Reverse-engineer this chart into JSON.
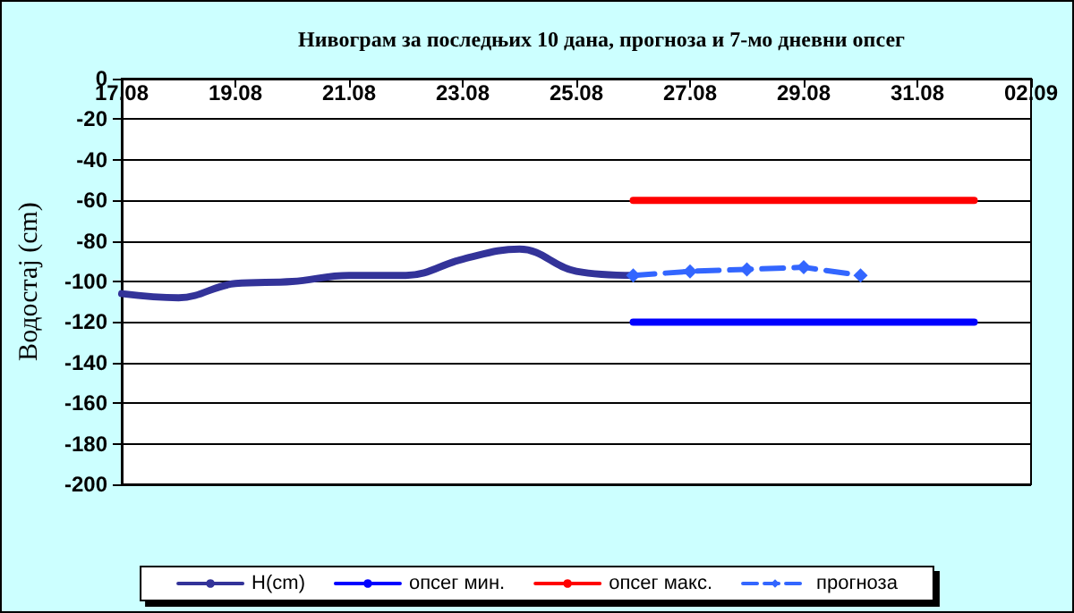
{
  "chart_data": {
    "type": "line",
    "title": "Нивограм за последњих 10 дана, прогноза и 7-мо дневни опсег",
    "ylabel": "Водостај (cm)",
    "xlim": [
      "--08-17",
      "--09-02"
    ],
    "xticks": [
      {
        "value": "--08-17",
        "label": "17.08"
      },
      {
        "value": "--08-19",
        "label": "19.08"
      },
      {
        "value": "--08-21",
        "label": "21.08"
      },
      {
        "value": "--08-23",
        "label": "23.08"
      },
      {
        "value": "--08-25",
        "label": "25.08"
      },
      {
        "value": "--08-27",
        "label": "27.08"
      },
      {
        "value": "--08-29",
        "label": "29.08"
      },
      {
        "value": "--08-31",
        "label": "31.08"
      },
      {
        "value": "--09-02",
        "label": "02.09"
      }
    ],
    "ylim": [
      -200,
      0
    ],
    "yticks": [
      -200,
      -180,
      -160,
      -140,
      -120,
      -100,
      -80,
      -60,
      -40,
      -20,
      0
    ],
    "grid": "y",
    "legend": "bottom",
    "series": [
      {
        "name": "H(cm)",
        "color": "#333399",
        "marker": "none",
        "line_style": "solid",
        "x": [
          "--08-17",
          "--08-18",
          "--08-19",
          "--08-20",
          "--08-21",
          "--08-22",
          "--08-23",
          "--08-24",
          "--08-25",
          "--08-26"
        ],
        "values": [
          -106,
          -108,
          -101,
          -100,
          -97,
          -97,
          -89,
          -84,
          -95,
          -97
        ]
      },
      {
        "name": "опсег мин.",
        "color": "#0000ff",
        "marker": "none",
        "line_style": "solid",
        "x": [
          "--08-26",
          "--09-01"
        ],
        "values": [
          -120,
          -120
        ]
      },
      {
        "name": "опсег макс.",
        "color": "#ff0000",
        "marker": "none",
        "line_style": "solid",
        "x": [
          "--08-26",
          "--09-01"
        ],
        "values": [
          -60,
          -60
        ]
      },
      {
        "name": "прогноза",
        "color": "#3366ff",
        "marker": "diamond",
        "line_style": "dashed",
        "x": [
          "--08-26",
          "--08-27",
          "--08-28",
          "--08-29",
          "--08-30"
        ],
        "values": [
          -97,
          -95,
          -94,
          -93,
          -97
        ]
      }
    ]
  }
}
